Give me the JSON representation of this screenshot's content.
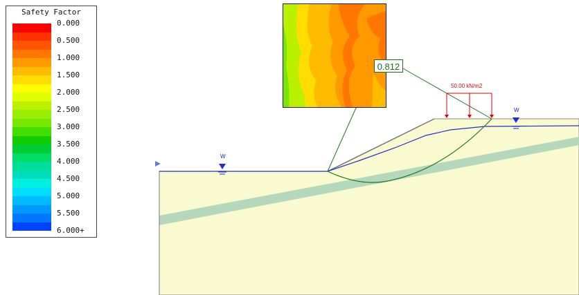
{
  "legend": {
    "title": "Safety Factor",
    "colors": [
      "#ff0000",
      "#ff3300",
      "#ff5500",
      "#ff7700",
      "#ff9900",
      "#ffbb00",
      "#ffdd00",
      "#ffff00",
      "#ddff00",
      "#bbf000",
      "#99ee00",
      "#77e600",
      "#44dd00",
      "#11cc00",
      "#00cc33",
      "#00dd66",
      "#00dd99",
      "#00ddbb",
      "#00eedd",
      "#00ddff",
      "#00bbff",
      "#0099ff",
      "#0077ff",
      "#0044ff"
    ],
    "labels": [
      "0.000",
      "0.500",
      "1.000",
      "1.500",
      "2.000",
      "2.500",
      "3.000",
      "3.500",
      "4.000",
      "4.500",
      "5.000",
      "5.500",
      "6.000+"
    ]
  },
  "analysis": {
    "min_safety_factor": "0.812",
    "distributed_load": "50.00 kN/m2",
    "water_table_label_left": "W",
    "water_table_label_right": "W"
  },
  "colors": {
    "soil": "#fafad0",
    "weak_layer": "#b5d8bc",
    "water_line": "#1f2fd6",
    "slip_circle": "#1f7a1f",
    "load": "#e00000"
  }
}
